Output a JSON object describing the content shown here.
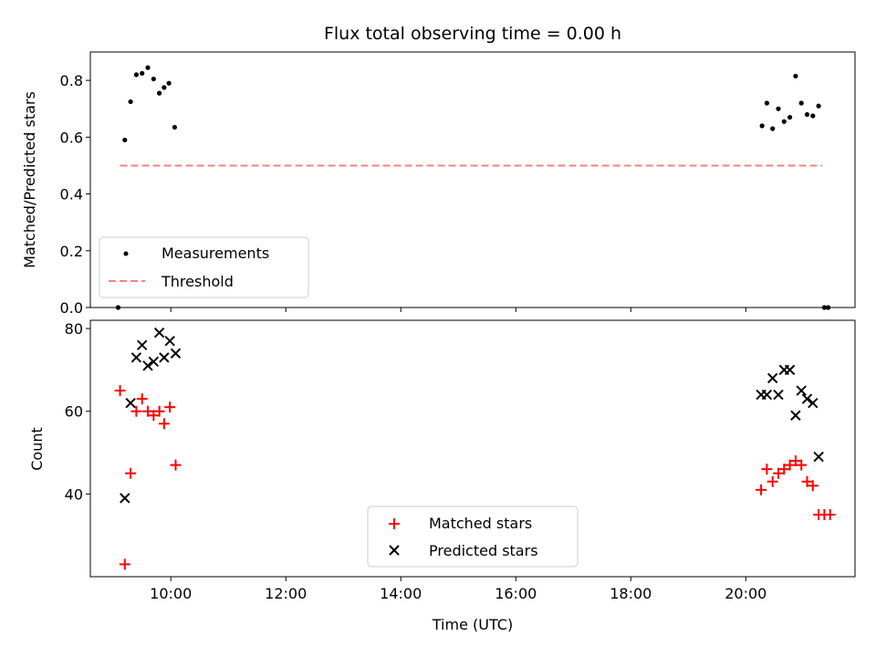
{
  "chart_data": [
    {
      "type": "scatter",
      "title": "Flux total observing time = 0.00 h",
      "xlabel": "",
      "ylabel": "Matched/Predicted stars",
      "ylim": [
        0,
        0.9
      ],
      "xlim_hours": [
        8.6,
        21.9
      ],
      "yticks": [
        "0.0",
        "0.2",
        "0.4",
        "0.6",
        "0.8"
      ],
      "grid": false,
      "legend_position": "lower-left",
      "series": [
        {
          "name": "Measurements",
          "marker": "dot",
          "color": "#000000",
          "points": [
            {
              "x": "09:05",
              "y": 0.0
            },
            {
              "x": "09:12",
              "y": 0.59
            },
            {
              "x": "09:18",
              "y": 0.725
            },
            {
              "x": "09:24",
              "y": 0.82
            },
            {
              "x": "09:30",
              "y": 0.825
            },
            {
              "x": "09:36",
              "y": 0.845
            },
            {
              "x": "09:42",
              "y": 0.805
            },
            {
              "x": "09:48",
              "y": 0.755
            },
            {
              "x": "09:53",
              "y": 0.775
            },
            {
              "x": "09:58",
              "y": 0.79
            },
            {
              "x": "10:04",
              "y": 0.635
            },
            {
              "x": "20:17",
              "y": 0.64
            },
            {
              "x": "20:22",
              "y": 0.72
            },
            {
              "x": "20:28",
              "y": 0.63
            },
            {
              "x": "20:34",
              "y": 0.7
            },
            {
              "x": "20:40",
              "y": 0.655
            },
            {
              "x": "20:46",
              "y": 0.67
            },
            {
              "x": "20:52",
              "y": 0.815
            },
            {
              "x": "20:58",
              "y": 0.72
            },
            {
              "x": "21:04",
              "y": 0.68
            },
            {
              "x": "21:10",
              "y": 0.675
            },
            {
              "x": "21:16",
              "y": 0.71
            },
            {
              "x": "21:22",
              "y": 0.0
            },
            {
              "x": "21:26",
              "y": 0.0
            }
          ]
        },
        {
          "name": "Threshold",
          "type": "line",
          "style": "dashed",
          "color": "#ff7f7f",
          "points": [
            {
              "x": "09:07",
              "y": 0.5
            },
            {
              "x": "21:20",
              "y": 0.5
            }
          ]
        }
      ]
    },
    {
      "type": "scatter",
      "title": "",
      "xlabel": "Time (UTC)",
      "ylabel": "Count",
      "ylim": [
        20,
        82
      ],
      "xlim_hours": [
        8.6,
        21.9
      ],
      "xticks": [
        "10:00",
        "12:00",
        "14:00",
        "16:00",
        "18:00",
        "20:00"
      ],
      "yticks": [
        "40",
        "60",
        "80"
      ],
      "grid": false,
      "legend_position": "lower-center",
      "series": [
        {
          "name": "Matched stars",
          "marker": "plus",
          "color": "#ff0000",
          "points": [
            {
              "x": "09:07",
              "y": 65
            },
            {
              "x": "09:12",
              "y": 23
            },
            {
              "x": "09:18",
              "y": 45
            },
            {
              "x": "09:24",
              "y": 60
            },
            {
              "x": "09:30",
              "y": 63
            },
            {
              "x": "09:36",
              "y": 60
            },
            {
              "x": "09:42",
              "y": 59
            },
            {
              "x": "09:48",
              "y": 60
            },
            {
              "x": "09:53",
              "y": 57
            },
            {
              "x": "09:59",
              "y": 61
            },
            {
              "x": "10:05",
              "y": 47
            },
            {
              "x": "20:16",
              "y": 41
            },
            {
              "x": "20:22",
              "y": 46
            },
            {
              "x": "20:28",
              "y": 43
            },
            {
              "x": "20:34",
              "y": 45
            },
            {
              "x": "20:40",
              "y": 46
            },
            {
              "x": "20:46",
              "y": 47
            },
            {
              "x": "20:52",
              "y": 48
            },
            {
              "x": "20:58",
              "y": 47
            },
            {
              "x": "21:04",
              "y": 43
            },
            {
              "x": "21:10",
              "y": 42
            },
            {
              "x": "21:16",
              "y": 35
            },
            {
              "x": "21:22",
              "y": 35
            },
            {
              "x": "21:28",
              "y": 35
            }
          ]
        },
        {
          "name": "Predicted stars",
          "marker": "cross",
          "color": "#000000",
          "points": [
            {
              "x": "09:12",
              "y": 39
            },
            {
              "x": "09:18",
              "y": 62
            },
            {
              "x": "09:24",
              "y": 73
            },
            {
              "x": "09:30",
              "y": 76
            },
            {
              "x": "09:36",
              "y": 71
            },
            {
              "x": "09:42",
              "y": 72
            },
            {
              "x": "09:48",
              "y": 79
            },
            {
              "x": "09:53",
              "y": 73
            },
            {
              "x": "09:59",
              "y": 77
            },
            {
              "x": "10:05",
              "y": 74
            },
            {
              "x": "20:16",
              "y": 64
            },
            {
              "x": "20:22",
              "y": 64
            },
            {
              "x": "20:28",
              "y": 68
            },
            {
              "x": "20:34",
              "y": 64
            },
            {
              "x": "20:40",
              "y": 70
            },
            {
              "x": "20:46",
              "y": 70
            },
            {
              "x": "20:52",
              "y": 59
            },
            {
              "x": "20:58",
              "y": 65
            },
            {
              "x": "21:04",
              "y": 63
            },
            {
              "x": "21:10",
              "y": 62
            },
            {
              "x": "21:16",
              "y": 49
            }
          ]
        }
      ]
    }
  ]
}
